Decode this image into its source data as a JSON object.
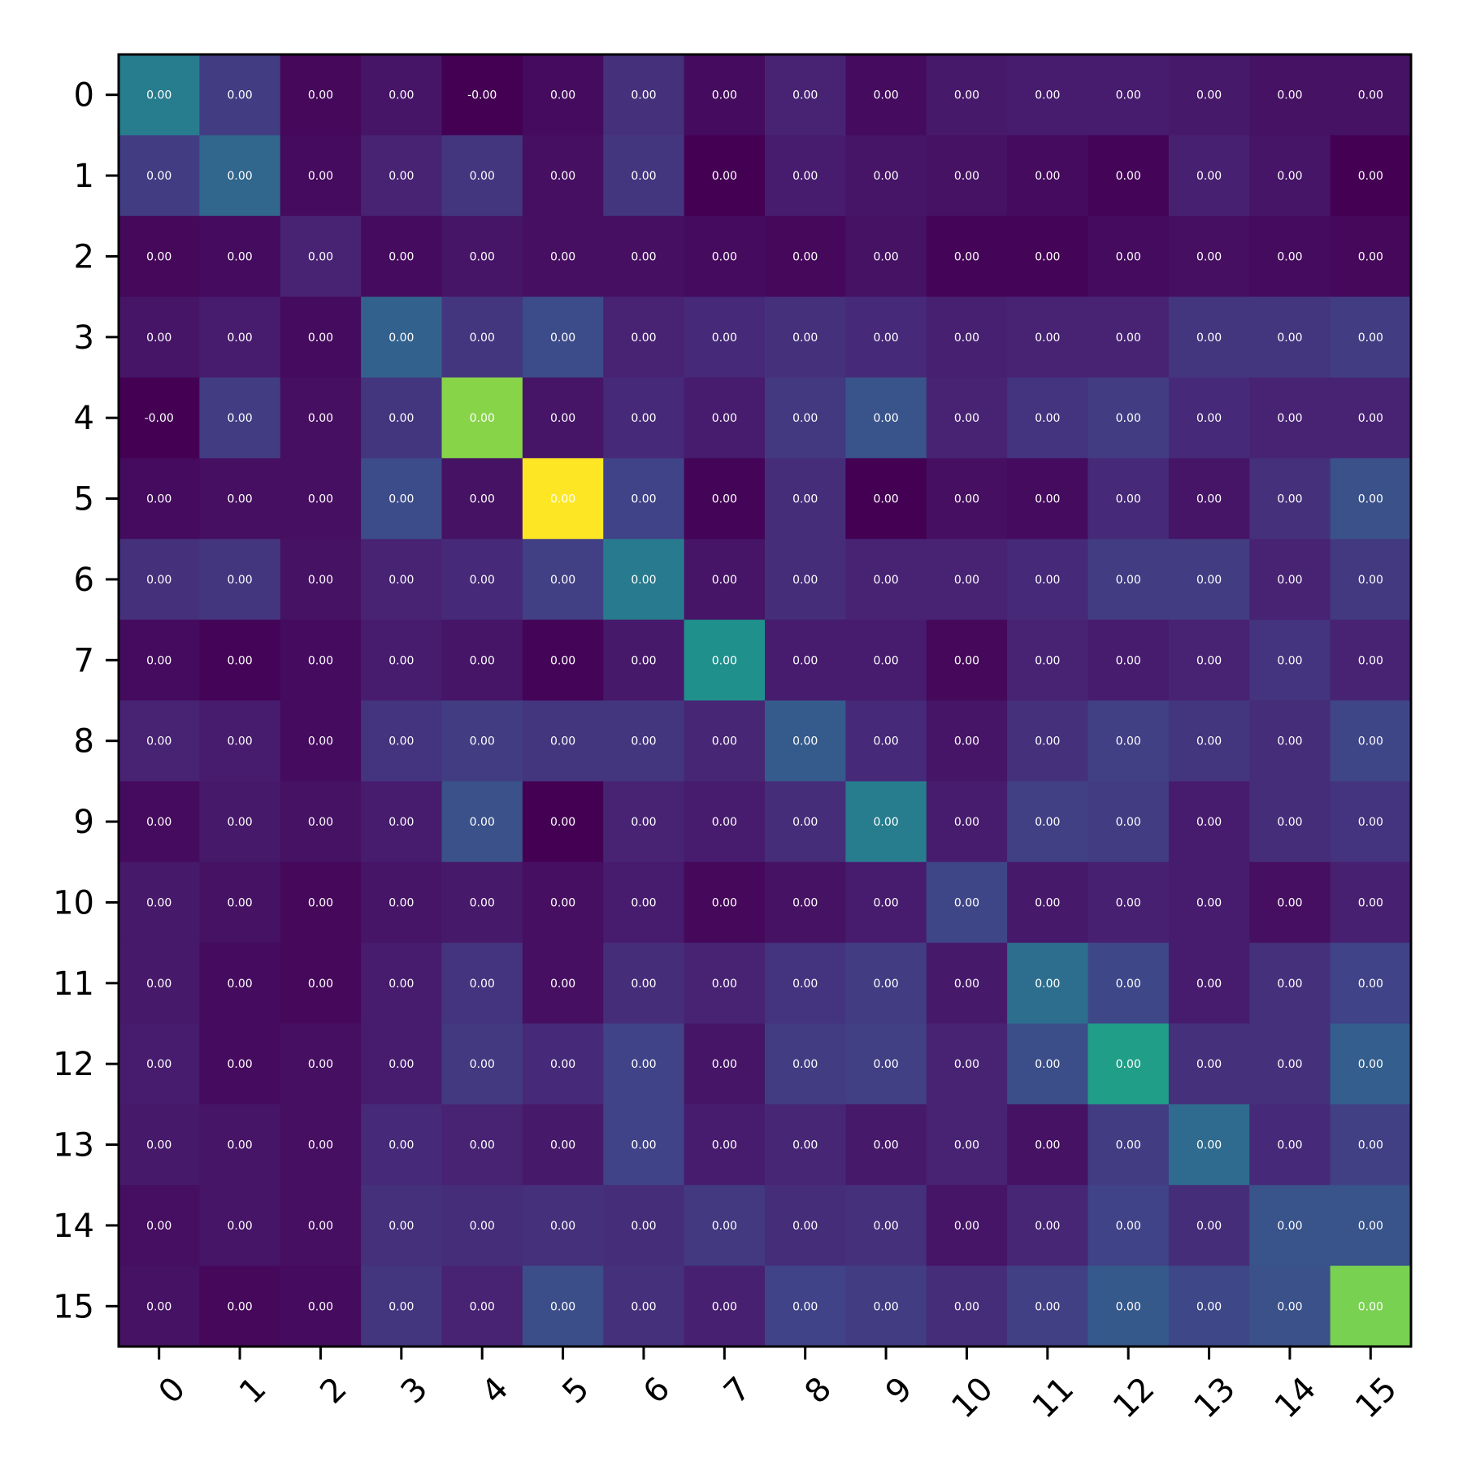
{
  "chart_data": {
    "type": "heatmap",
    "colormap": "viridis",
    "x_tick_labels": [
      "0",
      "1",
      "2",
      "3",
      "4",
      "5",
      "6",
      "7",
      "8",
      "9",
      "10",
      "11",
      "12",
      "13",
      "14",
      "15"
    ],
    "y_tick_labels": [
      "0",
      "1",
      "2",
      "3",
      "4",
      "5",
      "6",
      "7",
      "8",
      "9",
      "10",
      "11",
      "12",
      "13",
      "14",
      "15"
    ],
    "grid": false,
    "colorbar": false,
    "title": "",
    "xlabel": "",
    "ylabel": "",
    "color_intensity": [
      [
        0.42,
        0.18,
        0.02,
        0.06,
        0.0,
        0.03,
        0.14,
        0.03,
        0.1,
        0.03,
        0.07,
        0.08,
        0.08,
        0.07,
        0.05,
        0.05
      ],
      [
        0.18,
        0.33,
        0.03,
        0.1,
        0.16,
        0.04,
        0.16,
        0.0,
        0.08,
        0.06,
        0.05,
        0.03,
        0.01,
        0.09,
        0.06,
        0.0
      ],
      [
        0.02,
        0.03,
        0.1,
        0.03,
        0.06,
        0.04,
        0.04,
        0.03,
        0.02,
        0.05,
        0.01,
        0.01,
        0.03,
        0.04,
        0.03,
        0.02
      ],
      [
        0.06,
        0.08,
        0.03,
        0.31,
        0.16,
        0.23,
        0.1,
        0.12,
        0.14,
        0.12,
        0.09,
        0.1,
        0.1,
        0.16,
        0.16,
        0.18
      ],
      [
        0.0,
        0.18,
        0.04,
        0.16,
        0.82,
        0.06,
        0.12,
        0.08,
        0.17,
        0.26,
        0.1,
        0.15,
        0.18,
        0.12,
        0.1,
        0.1
      ],
      [
        0.03,
        0.04,
        0.04,
        0.23,
        0.05,
        1.0,
        0.2,
        0.01,
        0.13,
        0.0,
        0.04,
        0.03,
        0.12,
        0.06,
        0.14,
        0.25
      ],
      [
        0.14,
        0.16,
        0.05,
        0.1,
        0.12,
        0.19,
        0.41,
        0.06,
        0.13,
        0.1,
        0.1,
        0.12,
        0.18,
        0.18,
        0.1,
        0.17
      ],
      [
        0.03,
        0.01,
        0.03,
        0.08,
        0.06,
        0.01,
        0.07,
        0.5,
        0.08,
        0.08,
        0.02,
        0.1,
        0.08,
        0.1,
        0.15,
        0.1
      ],
      [
        0.1,
        0.08,
        0.03,
        0.15,
        0.18,
        0.16,
        0.16,
        0.11,
        0.29,
        0.12,
        0.06,
        0.14,
        0.19,
        0.16,
        0.13,
        0.21
      ],
      [
        0.03,
        0.07,
        0.05,
        0.08,
        0.25,
        0.0,
        0.1,
        0.08,
        0.13,
        0.42,
        0.08,
        0.19,
        0.18,
        0.08,
        0.13,
        0.15
      ],
      [
        0.07,
        0.05,
        0.02,
        0.06,
        0.07,
        0.04,
        0.08,
        0.02,
        0.05,
        0.08,
        0.21,
        0.07,
        0.09,
        0.08,
        0.04,
        0.09
      ],
      [
        0.07,
        0.03,
        0.02,
        0.08,
        0.15,
        0.04,
        0.13,
        0.1,
        0.15,
        0.18,
        0.07,
        0.36,
        0.22,
        0.08,
        0.14,
        0.2
      ],
      [
        0.08,
        0.03,
        0.04,
        0.08,
        0.17,
        0.12,
        0.2,
        0.06,
        0.18,
        0.19,
        0.1,
        0.24,
        0.56,
        0.14,
        0.14,
        0.3
      ],
      [
        0.07,
        0.06,
        0.04,
        0.12,
        0.1,
        0.07,
        0.2,
        0.08,
        0.11,
        0.07,
        0.1,
        0.05,
        0.18,
        0.35,
        0.12,
        0.19
      ],
      [
        0.04,
        0.06,
        0.04,
        0.14,
        0.13,
        0.14,
        0.13,
        0.17,
        0.13,
        0.14,
        0.06,
        0.11,
        0.2,
        0.13,
        0.26,
        0.26
      ],
      [
        0.05,
        0.02,
        0.03,
        0.16,
        0.1,
        0.24,
        0.14,
        0.09,
        0.2,
        0.18,
        0.13,
        0.19,
        0.28,
        0.22,
        0.25,
        0.8
      ]
    ],
    "cell_labels": [
      [
        "0.00",
        "0.00",
        "0.00",
        "0.00",
        "-0.00",
        "0.00",
        "0.00",
        "0.00",
        "0.00",
        "0.00",
        "0.00",
        "0.00",
        "0.00",
        "0.00",
        "0.00",
        "0.00"
      ],
      [
        "0.00",
        "0.00",
        "0.00",
        "0.00",
        "0.00",
        "0.00",
        "0.00",
        "0.00",
        "0.00",
        "0.00",
        "0.00",
        "0.00",
        "0.00",
        "0.00",
        "0.00",
        "0.00"
      ],
      [
        "0.00",
        "0.00",
        "0.00",
        "0.00",
        "0.00",
        "0.00",
        "0.00",
        "0.00",
        "0.00",
        "0.00",
        "0.00",
        "0.00",
        "0.00",
        "0.00",
        "0.00",
        "0.00"
      ],
      [
        "0.00",
        "0.00",
        "0.00",
        "0.00",
        "0.00",
        "0.00",
        "0.00",
        "0.00",
        "0.00",
        "0.00",
        "0.00",
        "0.00",
        "0.00",
        "0.00",
        "0.00",
        "0.00"
      ],
      [
        "-0.00",
        "0.00",
        "0.00",
        "0.00",
        "0.00",
        "0.00",
        "0.00",
        "0.00",
        "0.00",
        "0.00",
        "0.00",
        "0.00",
        "0.00",
        "0.00",
        "0.00",
        "0.00"
      ],
      [
        "0.00",
        "0.00",
        "0.00",
        "0.00",
        "0.00",
        "0.00",
        "0.00",
        "0.00",
        "0.00",
        "0.00",
        "0.00",
        "0.00",
        "0.00",
        "0.00",
        "0.00",
        "0.00"
      ],
      [
        "0.00",
        "0.00",
        "0.00",
        "0.00",
        "0.00",
        "0.00",
        "0.00",
        "0.00",
        "0.00",
        "0.00",
        "0.00",
        "0.00",
        "0.00",
        "0.00",
        "0.00",
        "0.00"
      ],
      [
        "0.00",
        "0.00",
        "0.00",
        "0.00",
        "0.00",
        "0.00",
        "0.00",
        "0.00",
        "0.00",
        "0.00",
        "0.00",
        "0.00",
        "0.00",
        "0.00",
        "0.00",
        "0.00"
      ],
      [
        "0.00",
        "0.00",
        "0.00",
        "0.00",
        "0.00",
        "0.00",
        "0.00",
        "0.00",
        "0.00",
        "0.00",
        "0.00",
        "0.00",
        "0.00",
        "0.00",
        "0.00",
        "0.00"
      ],
      [
        "0.00",
        "0.00",
        "0.00",
        "0.00",
        "0.00",
        "0.00",
        "0.00",
        "0.00",
        "0.00",
        "0.00",
        "0.00",
        "0.00",
        "0.00",
        "0.00",
        "0.00",
        "0.00"
      ],
      [
        "0.00",
        "0.00",
        "0.00",
        "0.00",
        "0.00",
        "0.00",
        "0.00",
        "0.00",
        "0.00",
        "0.00",
        "0.00",
        "0.00",
        "0.00",
        "0.00",
        "0.00",
        "0.00"
      ],
      [
        "0.00",
        "0.00",
        "0.00",
        "0.00",
        "0.00",
        "0.00",
        "0.00",
        "0.00",
        "0.00",
        "0.00",
        "0.00",
        "0.00",
        "0.00",
        "0.00",
        "0.00",
        "0.00"
      ],
      [
        "0.00",
        "0.00",
        "0.00",
        "0.00",
        "0.00",
        "0.00",
        "0.00",
        "0.00",
        "0.00",
        "0.00",
        "0.00",
        "0.00",
        "0.00",
        "0.00",
        "0.00",
        "0.00"
      ],
      [
        "0.00",
        "0.00",
        "0.00",
        "0.00",
        "0.00",
        "0.00",
        "0.00",
        "0.00",
        "0.00",
        "0.00",
        "0.00",
        "0.00",
        "0.00",
        "0.00",
        "0.00",
        "0.00"
      ],
      [
        "0.00",
        "0.00",
        "0.00",
        "0.00",
        "0.00",
        "0.00",
        "0.00",
        "0.00",
        "0.00",
        "0.00",
        "0.00",
        "0.00",
        "0.00",
        "0.00",
        "0.00",
        "0.00"
      ],
      [
        "0.00",
        "0.00",
        "0.00",
        "0.00",
        "0.00",
        "0.00",
        "0.00",
        "0.00",
        "0.00",
        "0.00",
        "0.00",
        "0.00",
        "0.00",
        "0.00",
        "0.00",
        "0.00"
      ]
    ]
  }
}
